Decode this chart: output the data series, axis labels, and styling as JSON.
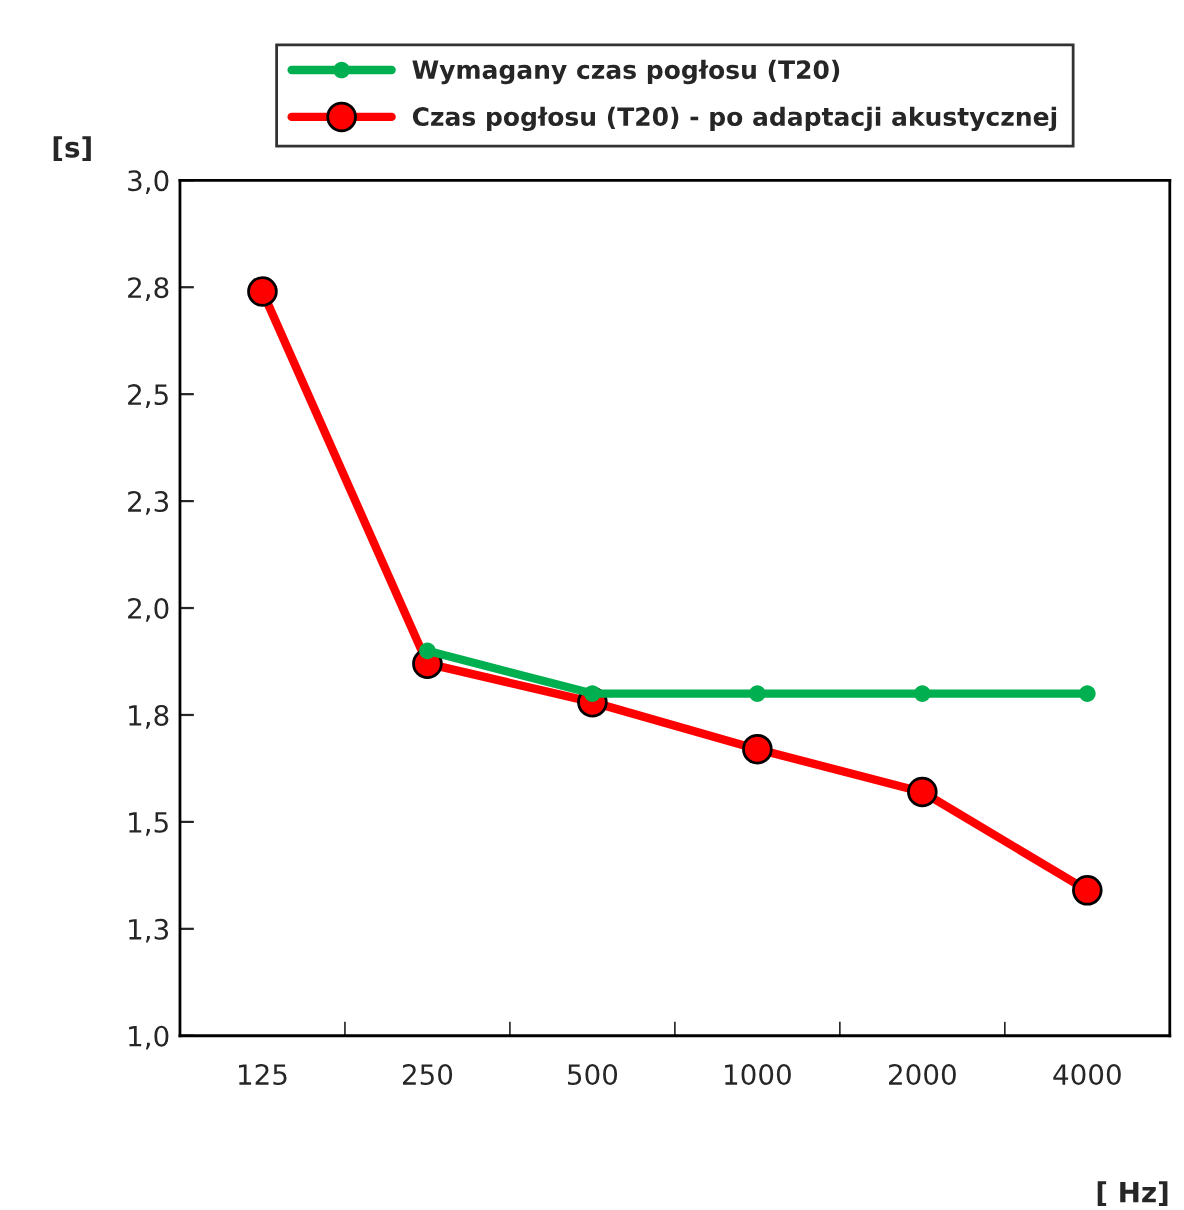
{
  "chart_data": {
    "type": "line",
    "ylabel": "[s]",
    "xlabel": "[ Hz]",
    "categories": [
      "125",
      "250",
      "500",
      "1000",
      "2000",
      "4000"
    ],
    "series": [
      {
        "name": "Wymagany czas pogłosu (T20)",
        "color": "#00b050",
        "values": [
          null,
          1.9,
          1.8,
          1.8,
          1.8,
          1.8
        ]
      },
      {
        "name": "Czas pogłosu (T20) - po adaptacji akustycznej",
        "color": "#ff0000",
        "values": [
          2.74,
          1.87,
          1.78,
          1.67,
          1.57,
          1.34
        ]
      }
    ],
    "ylim": [
      1.0,
      3.0
    ],
    "yticks": [
      {
        "value": 1.0,
        "label": "1,0"
      },
      {
        "value": 1.25,
        "label": "1,3"
      },
      {
        "value": 1.5,
        "label": "1,5"
      },
      {
        "value": 1.75,
        "label": "1,8"
      },
      {
        "value": 2.0,
        "label": "2,0"
      },
      {
        "value": 2.25,
        "label": "2,3"
      },
      {
        "value": 2.5,
        "label": "2,5"
      },
      {
        "value": 2.75,
        "label": "2,8"
      },
      {
        "value": 3.0,
        "label": "3,0"
      }
    ],
    "grid": false,
    "legend": "top",
    "marker": "circle",
    "line_style": "solid"
  }
}
